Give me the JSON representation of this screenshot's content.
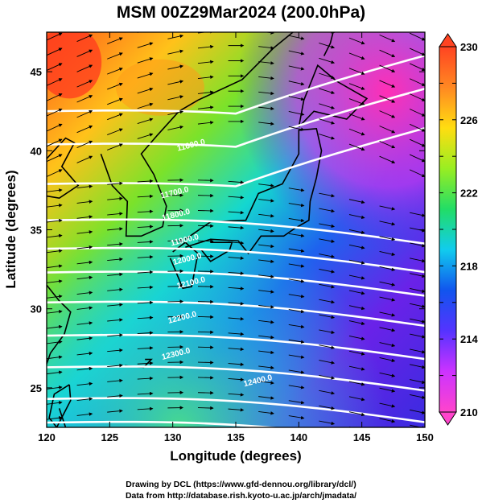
{
  "figure": {
    "title": "MSM 00Z29Mar2024 (200.0hPa)",
    "xlabel": "Longitude (degrees)",
    "ylabel": "Latitude  (degrees)",
    "credits": [
      "Drawing by DCL (https://www.gfd-dennou.org/library/dcl/)",
      "Data from http://database.rish.kyoto-u.ac.jp/arch/jmadata/"
    ]
  },
  "map": {
    "lon_range": [
      120,
      150
    ],
    "lat_range": [
      22.5,
      47.5
    ],
    "lon_ticks": [
      "120",
      "125",
      "130",
      "135",
      "140",
      "145",
      "150"
    ],
    "lon_tick_values": [
      120,
      125,
      130,
      135,
      140,
      145,
      150
    ],
    "lat_ticks": [
      "25",
      "30",
      "35",
      "40",
      "45"
    ],
    "lat_tick_values": [
      25,
      30,
      35,
      40,
      45
    ],
    "colorbar": {
      "min": 210,
      "max": 230,
      "tick_labels": [
        "230",
        "226",
        "222",
        "218",
        "214",
        "210"
      ],
      "tick_values": [
        230,
        226,
        222,
        218,
        214,
        210
      ],
      "colors": [
        "#ff44cc",
        "#cc33ff",
        "#5533ff",
        "#1155ee",
        "#11ccee",
        "#22dd66",
        "#99ee22",
        "#ffdd11",
        "#ff8822",
        "#ff4422"
      ]
    },
    "contour_labels": [
      {
        "text": "11600.0",
        "lon": 131.5,
        "lat": 40.2
      },
      {
        "text": "11700.0",
        "lon": 130.2,
        "lat": 37.2
      },
      {
        "text": "11800.0",
        "lon": 130.3,
        "lat": 35.8
      },
      {
        "text": "11900.0",
        "lon": 131.0,
        "lat": 34.2
      },
      {
        "text": "12000.0",
        "lon": 131.2,
        "lat": 33.0
      },
      {
        "text": "12100.0",
        "lon": 131.5,
        "lat": 31.5
      },
      {
        "text": "12200.0",
        "lon": 130.8,
        "lat": 29.3
      },
      {
        "text": "12300.0",
        "lon": 130.3,
        "lat": 27.0
      },
      {
        "text": "12400.0",
        "lon": 136.8,
        "lat": 25.3
      }
    ],
    "colors": {
      "contour": "#ffffff",
      "coast": "#000000",
      "arrow": "#000000"
    }
  }
}
